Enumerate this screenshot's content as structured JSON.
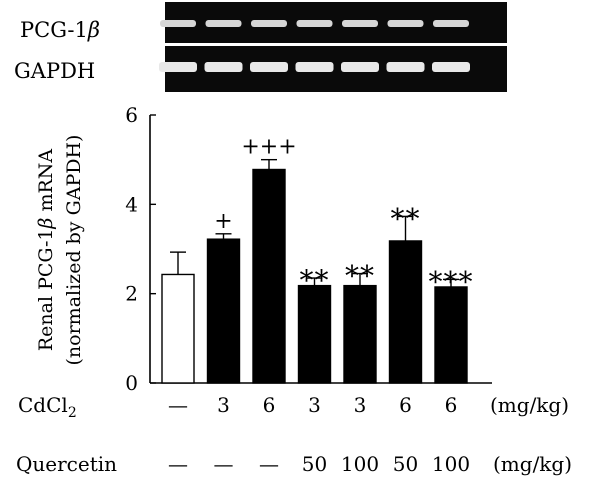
{
  "blot": {
    "rows": [
      {
        "label": "PCG-1",
        "label_suffix": "β"
      },
      {
        "label": "GAPDH",
        "label_suffix": ""
      }
    ],
    "lane_count": 7
  },
  "chart_data": {
    "type": "bar",
    "ylabel_line1": "Renal PCG-1",
    "ylabel_beta": "β",
    "ylabel_line1_end": " mRNA",
    "ylabel_line2": "(normalized by GAPDH)",
    "ylim": [
      0,
      6
    ],
    "yticks": [
      "0",
      "2",
      "4",
      "6"
    ],
    "bars": [
      {
        "value": 2.43,
        "error": 0.5,
        "fill": "white",
        "annotation": ""
      },
      {
        "value": 3.22,
        "error": 0.12,
        "fill": "black",
        "annotation": "+"
      },
      {
        "value": 4.78,
        "error": 0.22,
        "fill": "black",
        "annotation": "+++"
      },
      {
        "value": 2.18,
        "error": 0.17,
        "fill": "black",
        "annotation": "**"
      },
      {
        "value": 2.18,
        "error": 0.27,
        "fill": "black",
        "annotation": "**"
      },
      {
        "value": 3.18,
        "error": 0.55,
        "fill": "black",
        "annotation": "**"
      },
      {
        "value": 2.15,
        "error": 0.17,
        "fill": "black",
        "annotation": "***"
      }
    ],
    "treatments": [
      {
        "label": "CdCl",
        "label_sub": "2",
        "values": [
          "—",
          "3",
          "6",
          "3",
          "3",
          "6",
          "6"
        ],
        "unit": "(mg/kg)"
      },
      {
        "label": "Quercetin",
        "label_sub": "",
        "values": [
          "—",
          "—",
          "—",
          "50",
          "100",
          "50",
          "100"
        ],
        "unit": "(mg/kg)"
      }
    ]
  }
}
